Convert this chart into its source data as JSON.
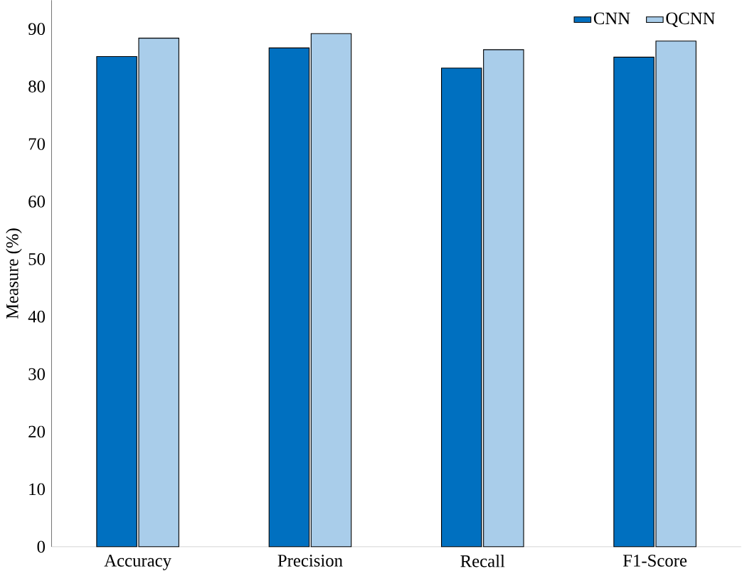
{
  "chart_data": {
    "type": "bar",
    "ylabel": "Measure (%)",
    "categories": [
      "Accuracy",
      "Precision",
      "Recall",
      "F1-Score"
    ],
    "series": [
      {
        "name": "CNN",
        "color": "#0070c0",
        "values": [
          85.2,
          86.7,
          83.2,
          85.1
        ]
      },
      {
        "name": "QCNN",
        "color": "#a9cdea",
        "values": [
          88.4,
          89.2,
          86.4,
          87.9
        ]
      }
    ],
    "ylim": [
      0,
      95
    ],
    "yticks": [
      0,
      10,
      20,
      30,
      40,
      50,
      60,
      70,
      80,
      90
    ],
    "legend": "top right",
    "grid": false
  }
}
